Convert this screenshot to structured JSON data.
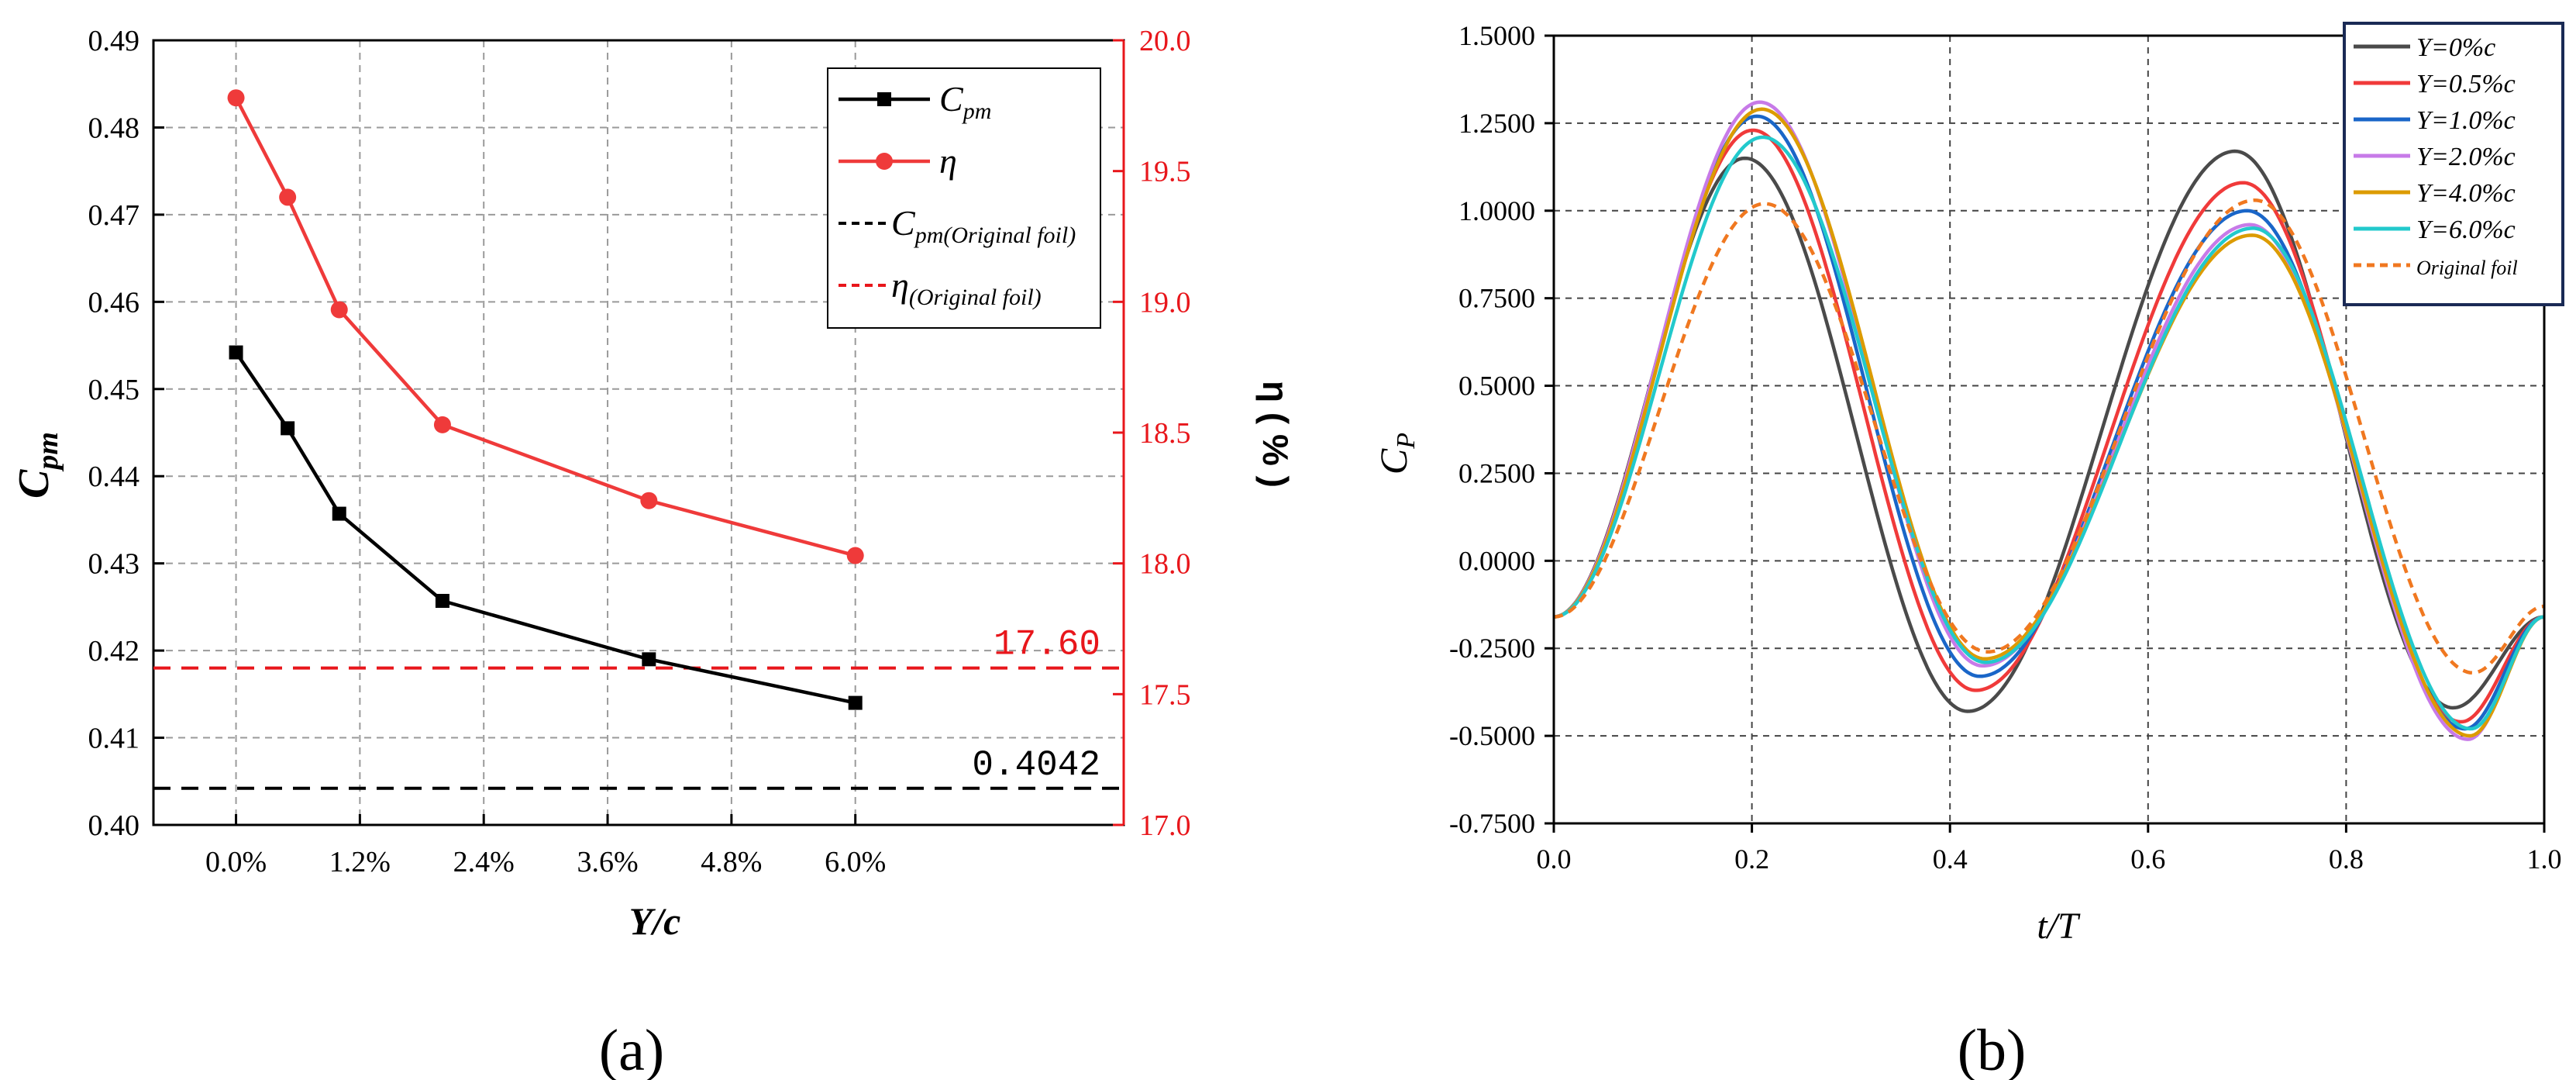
{
  "chart_data": [
    {
      "id": "a",
      "type": "line",
      "panel_label": "(a)",
      "xlabel": "Y/c",
      "ylabel": "C",
      "ylabel_sub": "pm",
      "y2label": "η ( % )",
      "x_range": [
        -0.8,
        8.6
      ],
      "x_ticks": [
        "0.0%",
        "1.2%",
        "2.4%",
        "3.6%",
        "4.8%",
        "6.0%"
      ],
      "x_tick_values": [
        0,
        1.2,
        2.4,
        3.6,
        4.8,
        6.0
      ],
      "ylim": [
        0.4,
        0.49
      ],
      "y_ticks": [
        "0.40",
        "0.41",
        "0.42",
        "0.43",
        "0.44",
        "0.45",
        "0.46",
        "0.47",
        "0.48",
        "0.49"
      ],
      "y2lim": [
        17.0,
        20.0
      ],
      "y2_ticks": [
        "17.0",
        "17.5",
        "18.0",
        "18.5",
        "19.0",
        "19.5",
        "20.0"
      ],
      "grid": true,
      "series": [
        {
          "name": "Cpm",
          "legend_main": "C",
          "legend_sub": "pm",
          "axis": "left",
          "color": "#000000",
          "marker": "square",
          "x": [
            0.0,
            0.5,
            1.0,
            2.0,
            4.0,
            6.0
          ],
          "values": [
            0.4542,
            0.4455,
            0.4357,
            0.4257,
            0.419,
            0.414
          ]
        },
        {
          "name": "η",
          "legend_main": "η",
          "legend_sub": "",
          "axis": "right",
          "color": "#ef3a3a",
          "marker": "circle",
          "x": [
            0.0,
            0.5,
            1.0,
            2.0,
            4.0,
            6.0
          ],
          "values": [
            19.78,
            19.4,
            18.97,
            18.53,
            18.24,
            18.03
          ]
        }
      ],
      "reference_lines": [
        {
          "legend_main": "C",
          "legend_sub": "pm(Original foil)",
          "axis": "left",
          "value": 0.4042,
          "label": "0.4042",
          "color": "#000000"
        },
        {
          "legend_main": "η",
          "legend_sub": "(Original foil)",
          "axis": "right",
          "value": 17.6,
          "label": "17.60",
          "color": "#e8161b"
        }
      ],
      "legend_position": "top-right"
    },
    {
      "id": "b",
      "type": "line",
      "panel_label": "(b)",
      "xlabel": "t/T",
      "ylabel": "C",
      "ylabel_sub": "P",
      "xlim": [
        0,
        1.0
      ],
      "x_ticks": [
        "0.0",
        "0.2",
        "0.4",
        "0.6",
        "0.8",
        "1.0"
      ],
      "ylim": [
        -0.75,
        1.5
      ],
      "y_ticks": [
        "-0.7500",
        "-0.5000",
        "-0.2500",
        "0.0000",
        "0.2500",
        "0.5000",
        "0.7500",
        "1.0000",
        "1.2500",
        "1.5000"
      ],
      "grid": true,
      "series": [
        {
          "name": "Y=0%c",
          "color": "#4a4a4a",
          "dashed": false,
          "peak1": 1.15,
          "peak2": 1.17,
          "trough1": -0.43,
          "trough2": -0.42,
          "phase": -0.012
        },
        {
          "name": "Y=0.5%c",
          "color": "#f03a3a",
          "dashed": false,
          "peak1": 1.23,
          "peak2": 1.08,
          "trough1": -0.37,
          "trough2": -0.46,
          "phase": -0.004
        },
        {
          "name": "Y=1.0%c",
          "color": "#1a66c8",
          "dashed": false,
          "peak1": 1.27,
          "peak2": 1.0,
          "trough1": -0.33,
          "trough2": -0.48,
          "phase": 0.0
        },
        {
          "name": "Y=2.0%c",
          "color": "#c77ae8",
          "dashed": false,
          "peak1": 1.31,
          "peak2": 0.96,
          "trough1": -0.3,
          "trough2": -0.51,
          "phase": 0.003
        },
        {
          "name": "Y=4.0%c",
          "color": "#dc9b00",
          "dashed": false,
          "peak1": 1.29,
          "peak2": 0.93,
          "trough1": -0.28,
          "trough2": -0.5,
          "phase": 0.005
        },
        {
          "name": "Y=6.0%c",
          "color": "#22c9cc",
          "dashed": false,
          "peak1": 1.21,
          "peak2": 0.95,
          "trough1": -0.29,
          "trough2": -0.48,
          "phase": 0.006
        },
        {
          "name": "Original foil",
          "color": "#f07820",
          "dashed": true,
          "peak1": 1.02,
          "peak2": 1.03,
          "trough1": -0.26,
          "trough2": -0.32,
          "phase": 0.008
        }
      ],
      "legend_position": "top-right"
    }
  ]
}
